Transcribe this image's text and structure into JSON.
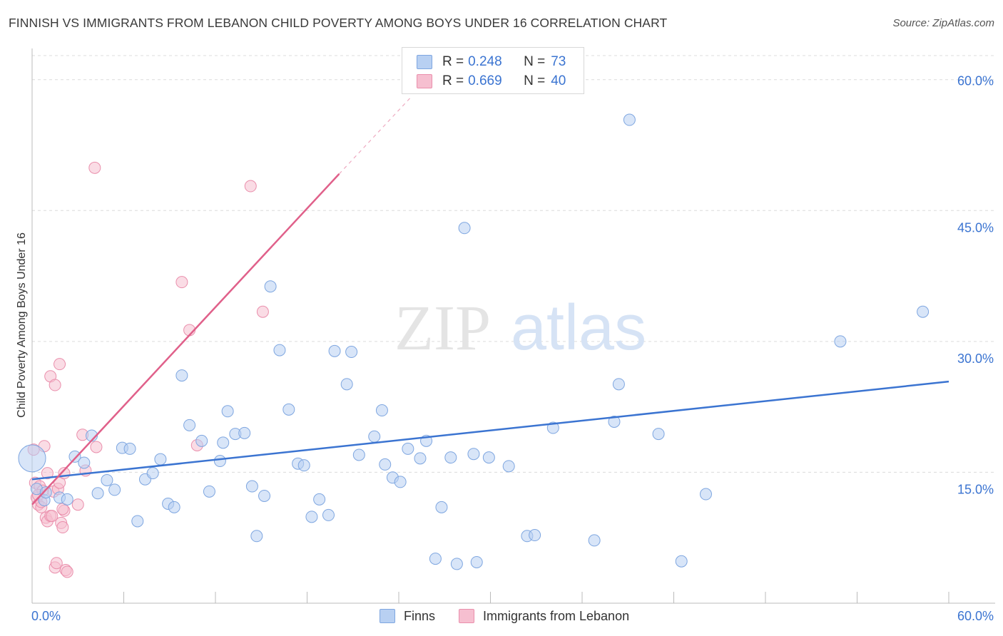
{
  "title": "FINNISH VS IMMIGRANTS FROM LEBANON CHILD POVERTY AMONG BOYS UNDER 16 CORRELATION CHART",
  "source": "Source: ZipAtlas.com",
  "watermark": {
    "zip": "ZIP",
    "atlas": "atlas"
  },
  "colors": {
    "blue": "#3b74d1",
    "blue_fill": "#b8d0f2",
    "pink": "#e0608a",
    "pink_fill": "#f6bfd0"
  },
  "legend": {
    "rows": [
      {
        "r_label": "R = ",
        "r_value": "0.248",
        "n_label": "N = ",
        "n_value": "73"
      },
      {
        "r_label": "R = ",
        "r_value": "0.669",
        "n_label": "N = ",
        "n_value": "40"
      }
    ],
    "series_names": [
      "Finns",
      "Immigrants from Lebanon"
    ]
  },
  "chart_data": {
    "type": "scatter",
    "title": "FINNISH VS IMMIGRANTS FROM LEBANON CHILD POVERTY AMONG BOYS UNDER 16 CORRELATION CHART",
    "xlabel": "",
    "ylabel": "Child Poverty Among Boys Under 16",
    "xlim": [
      0,
      60
    ],
    "ylim": [
      0,
      63
    ],
    "x_tick_labels": [
      "0.0%",
      "60.0%"
    ],
    "y_tick_values": [
      15,
      30,
      45,
      60
    ],
    "y_tick_labels": [
      "15.0%",
      "30.0%",
      "45.0%",
      "60.0%"
    ],
    "series": [
      {
        "name": "Finns",
        "color": "#3b74d1",
        "trendline": {
          "x": [
            0,
            60
          ],
          "y": [
            14.2,
            25.4
          ]
        },
        "points": [
          [
            0.0,
            16.6
          ],
          [
            0.3,
            13.1
          ],
          [
            0.8,
            11.8
          ],
          [
            1.8,
            12.1
          ],
          [
            2.3,
            11.9
          ],
          [
            2.8,
            16.8
          ],
          [
            3.4,
            16.1
          ],
          [
            3.9,
            19.2
          ],
          [
            4.3,
            12.6
          ],
          [
            4.9,
            14.1
          ],
          [
            5.4,
            13.0
          ],
          [
            5.9,
            17.8
          ],
          [
            6.4,
            17.7
          ],
          [
            6.9,
            9.4
          ],
          [
            7.4,
            14.2
          ],
          [
            7.9,
            14.9
          ],
          [
            8.4,
            16.5
          ],
          [
            8.9,
            11.4
          ],
          [
            9.3,
            11.0
          ],
          [
            9.8,
            26.1
          ],
          [
            10.3,
            20.4
          ],
          [
            11.1,
            18.6
          ],
          [
            11.6,
            12.8
          ],
          [
            12.3,
            16.3
          ],
          [
            12.5,
            18.4
          ],
          [
            12.8,
            22.0
          ],
          [
            13.3,
            19.4
          ],
          [
            13.9,
            19.5
          ],
          [
            14.4,
            13.4
          ],
          [
            14.7,
            7.7
          ],
          [
            15.2,
            12.3
          ],
          [
            15.6,
            36.3
          ],
          [
            16.2,
            29.0
          ],
          [
            16.8,
            22.2
          ],
          [
            17.4,
            16.0
          ],
          [
            17.8,
            15.8
          ],
          [
            18.3,
            9.9
          ],
          [
            18.8,
            11.9
          ],
          [
            19.4,
            10.1
          ],
          [
            19.8,
            28.9
          ],
          [
            20.6,
            25.1
          ],
          [
            20.9,
            28.8
          ],
          [
            21.4,
            17.0
          ],
          [
            22.4,
            19.1
          ],
          [
            22.9,
            22.1
          ],
          [
            23.1,
            15.9
          ],
          [
            23.6,
            14.4
          ],
          [
            24.1,
            13.9
          ],
          [
            24.6,
            17.7
          ],
          [
            25.4,
            16.6
          ],
          [
            25.8,
            18.6
          ],
          [
            26.4,
            5.1
          ],
          [
            26.8,
            11.0
          ],
          [
            27.4,
            16.7
          ],
          [
            27.8,
            4.5
          ],
          [
            28.3,
            43.0
          ],
          [
            28.9,
            17.1
          ],
          [
            29.1,
            4.7
          ],
          [
            29.9,
            16.7
          ],
          [
            31.2,
            15.7
          ],
          [
            32.4,
            7.7
          ],
          [
            32.9,
            7.8
          ],
          [
            34.1,
            20.1
          ],
          [
            36.8,
            7.2
          ],
          [
            38.1,
            20.8
          ],
          [
            38.4,
            25.1
          ],
          [
            39.1,
            55.4
          ],
          [
            41.0,
            19.4
          ],
          [
            42.5,
            4.8
          ],
          [
            44.1,
            12.5
          ],
          [
            52.9,
            30.0
          ],
          [
            58.3,
            33.4
          ],
          [
            0.9,
            12.7
          ]
        ]
      },
      {
        "name": "Immigrants from Lebanon",
        "color": "#e0608a",
        "trendline": {
          "x": [
            0,
            20.1
          ],
          "y": [
            11.3,
            49.2
          ]
        },
        "trendline_dashed": {
          "x": [
            20.1,
            24.8
          ],
          "y": [
            49.2,
            58.0
          ]
        },
        "points": [
          [
            0.1,
            17.6
          ],
          [
            0.2,
            13.8
          ],
          [
            0.3,
            12.1
          ],
          [
            0.4,
            11.3
          ],
          [
            0.5,
            13.4
          ],
          [
            0.6,
            11.0
          ],
          [
            0.7,
            12.9
          ],
          [
            0.8,
            18.0
          ],
          [
            0.9,
            9.8
          ],
          [
            1.0,
            14.9
          ],
          [
            1.0,
            9.4
          ],
          [
            1.2,
            26.0
          ],
          [
            1.2,
            10.0
          ],
          [
            1.4,
            12.8
          ],
          [
            1.5,
            25.0
          ],
          [
            1.5,
            4.1
          ],
          [
            1.6,
            4.6
          ],
          [
            1.7,
            13.1
          ],
          [
            1.8,
            13.8
          ],
          [
            1.8,
            27.4
          ],
          [
            1.9,
            9.2
          ],
          [
            2.0,
            8.7
          ],
          [
            2.1,
            14.9
          ],
          [
            2.1,
            10.6
          ],
          [
            2.2,
            3.8
          ],
          [
            2.3,
            3.6
          ],
          [
            3.0,
            11.3
          ],
          [
            3.3,
            19.3
          ],
          [
            3.5,
            15.2
          ],
          [
            4.2,
            17.9
          ],
          [
            4.1,
            49.9
          ],
          [
            9.8,
            36.8
          ],
          [
            10.3,
            31.3
          ],
          [
            10.8,
            18.1
          ],
          [
            14.3,
            47.8
          ],
          [
            15.1,
            33.4
          ],
          [
            0.4,
            12.4
          ],
          [
            0.6,
            11.6
          ],
          [
            1.3,
            10.0
          ],
          [
            2.0,
            10.8
          ]
        ]
      }
    ]
  }
}
